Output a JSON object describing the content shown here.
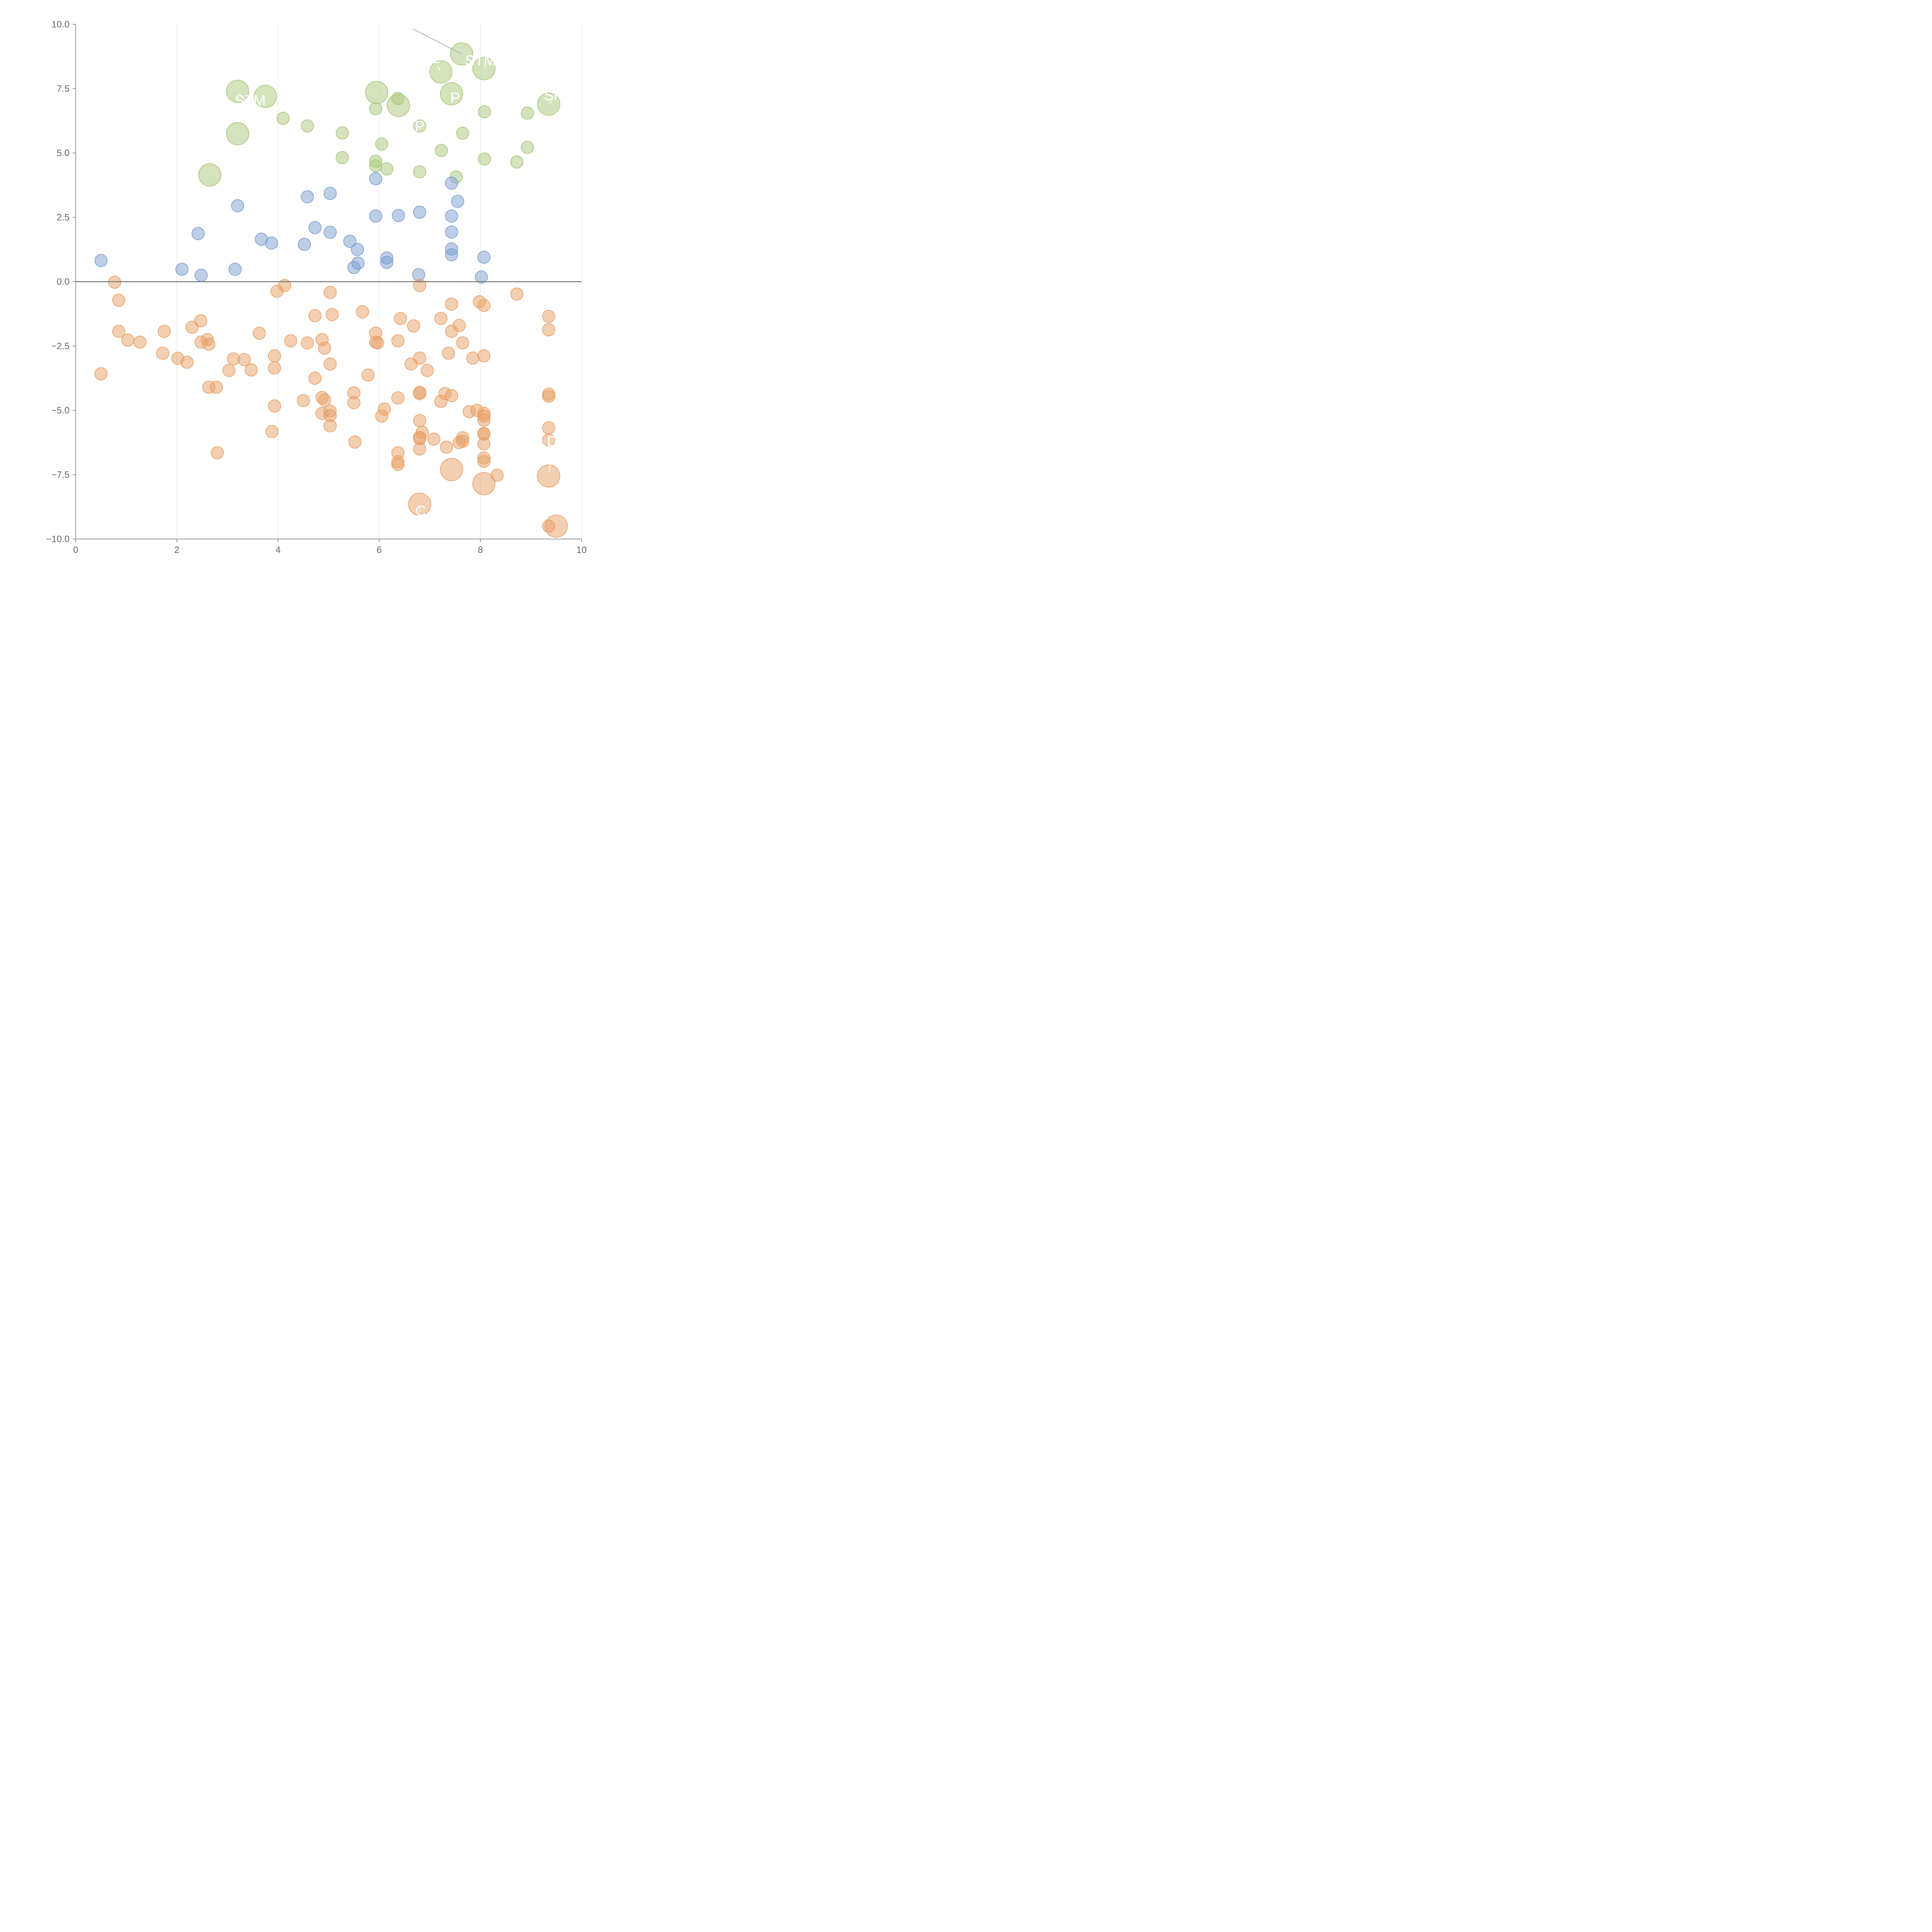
{
  "chart_data": {
    "type": "scatter",
    "title": "",
    "xlabel": "",
    "ylabel": "",
    "xlim": [
      0,
      10
    ],
    "ylim": [
      -10,
      10
    ],
    "xticks": [
      0,
      2,
      4,
      6,
      8,
      10
    ],
    "yticks": [
      -10,
      -7.5,
      -5,
      -2.5,
      0,
      2.5,
      5,
      7.5,
      10
    ],
    "xtick_labels": [
      "0",
      "2",
      "4",
      "6",
      "8",
      "10"
    ],
    "ytick_labels": [
      "−10.0",
      "−7.5",
      "−5.0",
      "−2.5",
      "0.0",
      "2.5",
      "5.0",
      "7.5",
      "10.0"
    ],
    "vertical_grid": true,
    "zero_line": true,
    "colors": {
      "green": "#a9c77a",
      "blue": "#7b9ecf",
      "orange": "#e7a065",
      "grid": "#dddddd",
      "axis": "#777777",
      "zero": "#777777",
      "leader": "#b0b0b0"
    },
    "series": [
      {
        "name": "green",
        "color": "#a9c77a",
        "points": [
          [
            3.2,
            7.4,
            2
          ],
          [
            3.75,
            7.2,
            2
          ],
          [
            3.2,
            5.75,
            2
          ],
          [
            2.65,
            4.15,
            2
          ],
          [
            5.95,
            7.35,
            2
          ],
          [
            6.38,
            6.85,
            2
          ],
          [
            7.22,
            8.15,
            2
          ],
          [
            7.63,
            8.85,
            2
          ],
          [
            8.07,
            8.28,
            2
          ],
          [
            7.43,
            7.3,
            2
          ],
          [
            9.35,
            6.9,
            2
          ],
          [
            4.1,
            6.35,
            1
          ],
          [
            4.58,
            6.05,
            1
          ],
          [
            5.27,
            5.78,
            1
          ],
          [
            5.27,
            4.82,
            1
          ],
          [
            5.93,
            6.72,
            1
          ],
          [
            6.05,
            5.35,
            1
          ],
          [
            5.93,
            4.68,
            1
          ],
          [
            5.93,
            4.5,
            1
          ],
          [
            6.15,
            4.38,
            1
          ],
          [
            6.37,
            7.12,
            1
          ],
          [
            6.8,
            6.05,
            1
          ],
          [
            6.8,
            4.27,
            1
          ],
          [
            7.23,
            5.1,
            1
          ],
          [
            7.52,
            4.07,
            1
          ],
          [
            7.65,
            5.77,
            1
          ],
          [
            8.08,
            6.6,
            1
          ],
          [
            8.08,
            4.77,
            1
          ],
          [
            8.72,
            4.65,
            1
          ],
          [
            8.93,
            6.55,
            1
          ],
          [
            8.93,
            5.22,
            1
          ]
        ]
      },
      {
        "name": "blue",
        "color": "#7b9ecf",
        "points": [
          [
            0.5,
            0.82,
            1
          ],
          [
            2.1,
            0.48,
            1
          ],
          [
            2.42,
            1.87,
            1
          ],
          [
            2.48,
            0.25,
            1
          ],
          [
            3.15,
            0.48,
            1
          ],
          [
            3.2,
            2.95,
            1
          ],
          [
            3.67,
            1.65,
            1
          ],
          [
            3.87,
            1.5,
            1
          ],
          [
            4.52,
            1.45,
            1
          ],
          [
            4.58,
            3.3,
            1
          ],
          [
            4.73,
            2.1,
            1
          ],
          [
            5.03,
            1.92,
            1
          ],
          [
            5.03,
            3.43,
            1
          ],
          [
            5.42,
            1.57,
            1
          ],
          [
            5.5,
            0.55,
            1
          ],
          [
            5.57,
            1.25,
            1
          ],
          [
            5.58,
            0.72,
            1
          ],
          [
            5.93,
            4.0,
            1
          ],
          [
            5.93,
            2.55,
            1
          ],
          [
            6.15,
            0.92,
            1
          ],
          [
            6.15,
            0.75,
            1
          ],
          [
            6.38,
            2.57,
            1
          ],
          [
            6.78,
            0.27,
            1
          ],
          [
            6.8,
            2.7,
            1
          ],
          [
            7.43,
            3.83,
            1
          ],
          [
            7.43,
            2.55,
            1
          ],
          [
            7.43,
            1.93,
            1
          ],
          [
            7.43,
            1.27,
            1
          ],
          [
            7.43,
            1.05,
            1
          ],
          [
            7.55,
            3.12,
            1
          ],
          [
            8.02,
            0.18,
            1
          ],
          [
            8.07,
            0.95,
            1
          ]
        ]
      },
      {
        "name": "orange",
        "color": "#e7a065",
        "points": [
          [
            7.43,
            -7.3,
            2
          ],
          [
            8.07,
            -7.85,
            2
          ],
          [
            6.8,
            -8.65,
            2
          ],
          [
            9.35,
            -7.55,
            2
          ],
          [
            9.5,
            -9.5,
            2
          ],
          [
            0.5,
            -3.58,
            1
          ],
          [
            0.77,
            -0.02,
            1
          ],
          [
            0.85,
            -0.72,
            1
          ],
          [
            0.85,
            -1.93,
            1
          ],
          [
            1.03,
            -2.27,
            1
          ],
          [
            1.27,
            -2.35,
            1
          ],
          [
            1.72,
            -2.78,
            1
          ],
          [
            1.75,
            -1.93,
            1
          ],
          [
            2.02,
            -2.98,
            1
          ],
          [
            2.2,
            -3.13,
            1
          ],
          [
            2.3,
            -1.77,
            1
          ],
          [
            2.47,
            -1.52,
            1
          ],
          [
            2.48,
            -2.35,
            1
          ],
          [
            2.6,
            -2.25,
            1
          ],
          [
            2.63,
            -2.43,
            1
          ],
          [
            2.63,
            -4.1,
            1
          ],
          [
            2.78,
            -4.1,
            1
          ],
          [
            2.8,
            -6.65,
            1
          ],
          [
            3.03,
            -3.45,
            1
          ],
          [
            3.12,
            -3.0,
            1
          ],
          [
            3.33,
            -3.03,
            1
          ],
          [
            3.47,
            -3.43,
            1
          ],
          [
            3.63,
            -2.0,
            1
          ],
          [
            3.88,
            -5.82,
            1
          ],
          [
            3.93,
            -2.88,
            1
          ],
          [
            3.93,
            -3.35,
            1
          ],
          [
            3.93,
            -4.83,
            1
          ],
          [
            3.98,
            -0.37,
            1
          ],
          [
            4.13,
            -0.15,
            1
          ],
          [
            4.25,
            -2.3,
            1
          ],
          [
            4.5,
            -4.62,
            1
          ],
          [
            4.58,
            -2.38,
            1
          ],
          [
            4.73,
            -1.32,
            1
          ],
          [
            4.73,
            -3.75,
            1
          ],
          [
            4.87,
            -2.25,
            1
          ],
          [
            4.87,
            -4.5,
            1
          ],
          [
            4.87,
            -5.12,
            1
          ],
          [
            4.92,
            -2.58,
            1
          ],
          [
            4.92,
            -4.6,
            1
          ],
          [
            5.03,
            -0.42,
            1
          ],
          [
            5.03,
            -3.2,
            1
          ],
          [
            5.03,
            -5.03,
            1
          ],
          [
            5.03,
            -5.2,
            1
          ],
          [
            5.03,
            -5.6,
            1
          ],
          [
            5.07,
            -1.28,
            1
          ],
          [
            5.5,
            -4.32,
            1
          ],
          [
            5.5,
            -4.7,
            1
          ],
          [
            5.52,
            -6.23,
            1
          ],
          [
            5.67,
            -1.17,
            1
          ],
          [
            5.78,
            -3.63,
            1
          ],
          [
            5.93,
            -2.0,
            1
          ],
          [
            5.93,
            -2.35,
            1
          ],
          [
            5.97,
            -2.38,
            1
          ],
          [
            6.05,
            -5.22,
            1
          ],
          [
            6.1,
            -4.95,
            1
          ],
          [
            6.37,
            -2.3,
            1
          ],
          [
            6.37,
            -4.52,
            1
          ],
          [
            6.37,
            -6.65,
            1
          ],
          [
            6.37,
            -7.0,
            1
          ],
          [
            6.37,
            -7.1,
            1
          ],
          [
            6.42,
            -1.43,
            1
          ],
          [
            6.63,
            -3.2,
            1
          ],
          [
            6.68,
            -1.72,
            1
          ],
          [
            6.8,
            -0.15,
            1
          ],
          [
            6.8,
            -2.97,
            1
          ],
          [
            6.8,
            -4.3,
            1
          ],
          [
            6.8,
            -4.35,
            1
          ],
          [
            6.8,
            -5.4,
            1
          ],
          [
            6.8,
            -6.05,
            1
          ],
          [
            6.8,
            -6.1,
            1
          ],
          [
            6.8,
            -6.5,
            1
          ],
          [
            6.85,
            -5.85,
            1
          ],
          [
            6.95,
            -3.45,
            1
          ],
          [
            7.08,
            -6.12,
            1
          ],
          [
            7.22,
            -1.43,
            1
          ],
          [
            7.22,
            -4.65,
            1
          ],
          [
            7.3,
            -4.35,
            1
          ],
          [
            7.33,
            -6.43,
            1
          ],
          [
            7.37,
            -2.78,
            1
          ],
          [
            7.43,
            -0.87,
            1
          ],
          [
            7.43,
            -1.93,
            1
          ],
          [
            7.43,
            -4.43,
            1
          ],
          [
            7.58,
            -1.7,
            1
          ],
          [
            7.58,
            -6.25,
            1
          ],
          [
            7.65,
            -2.38,
            1
          ],
          [
            7.65,
            -6.07,
            1
          ],
          [
            7.65,
            -6.2,
            1
          ],
          [
            7.78,
            -5.05,
            1
          ],
          [
            7.85,
            -2.97,
            1
          ],
          [
            7.93,
            -5.0,
            1
          ],
          [
            7.98,
            -0.78,
            1
          ],
          [
            8.07,
            -0.92,
            1
          ],
          [
            8.07,
            -2.88,
            1
          ],
          [
            8.07,
            -5.12,
            1
          ],
          [
            8.07,
            -5.22,
            1
          ],
          [
            8.07,
            -5.38,
            1
          ],
          [
            8.07,
            -5.9,
            1
          ],
          [
            8.07,
            -5.92,
            1
          ],
          [
            8.07,
            -6.3,
            1
          ],
          [
            8.07,
            -6.85,
            1
          ],
          [
            8.07,
            -6.98,
            1
          ],
          [
            8.33,
            -7.52,
            1
          ],
          [
            8.72,
            -0.48,
            1
          ],
          [
            9.35,
            -1.35,
            1
          ],
          [
            9.35,
            -1.87,
            1
          ],
          [
            9.35,
            -4.37,
            1
          ],
          [
            9.35,
            -4.45,
            1
          ],
          [
            9.35,
            -5.68,
            1
          ],
          [
            9.35,
            -6.15,
            1
          ],
          [
            9.35,
            -9.5,
            1
          ]
        ]
      }
    ],
    "labels": [
      {
        "text": "STM",
        "x": 3.45,
        "y": 6.85,
        "tx": 3.2,
        "ty": 7.4
      },
      {
        "text": "L",
        "x": 7.12,
        "y": 8.5,
        "tx": 7.22,
        "ty": 8.15
      },
      {
        "text": "STMA",
        "x": 8.1,
        "y": 8.4,
        "tx": 8.07,
        "ty": 8.28
      },
      {
        "text": "P",
        "x": 7.5,
        "y": 6.95,
        "tx": 7.43,
        "ty": 7.3
      },
      {
        "text": "SK",
        "x": 9.45,
        "y": 7.05,
        "tx": 9.35,
        "ty": 6.9
      },
      {
        "text": "P",
        "x": 6.8,
        "y": 5.85,
        "tx": 6.8,
        "ty": 6.05
      },
      {
        "text": "D",
        "x": 9.42,
        "y": -6.4,
        "tx": 9.35,
        "ty": -7.55
      },
      {
        "text": "C",
        "x": 6.82,
        "y": -9.1,
        "tx": 6.8,
        "ty": -8.65
      }
    ],
    "leader_line": {
      "x1": 6.67,
      "y1": 9.82,
      "x2": 7.63,
      "y2": 8.85
    }
  }
}
